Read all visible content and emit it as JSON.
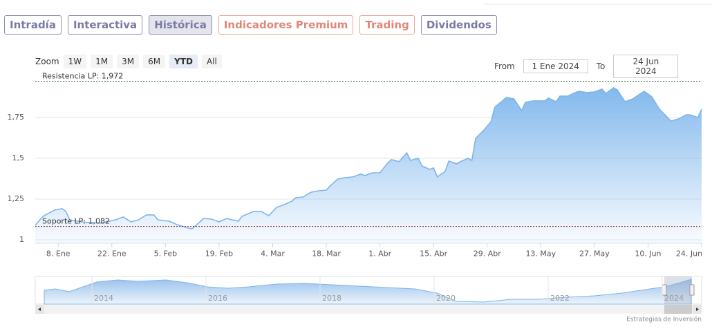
{
  "tabs": [
    "Intradía",
    "Interactiva",
    "Histórica",
    "Indicadores Premium",
    "Trading",
    "Dividendos"
  ],
  "zoom": {
    "label": "Zoom",
    "buttons": [
      "1W",
      "1M",
      "3M",
      "6M",
      "YTD",
      "All"
    ]
  },
  "range": {
    "from_label": "From",
    "from": "1 Ene 2024",
    "to_label": "To",
    "to": "24 Jun 2024"
  },
  "chart_data": {
    "type": "area",
    "color": "#7cb5ec",
    "x": [
      2,
      4,
      7,
      9,
      10,
      11,
      14,
      16,
      19,
      23,
      25,
      27,
      29,
      31,
      33,
      34,
      37,
      39,
      42,
      43,
      46,
      48,
      50,
      52,
      55,
      56,
      59,
      61,
      63,
      65,
      67,
      69,
      70,
      72,
      74,
      76,
      78,
      79,
      81,
      83,
      85,
      87,
      88,
      90,
      92,
      94,
      95,
      97,
      99,
      100,
      102,
      103,
      105,
      106,
      107,
      109,
      110,
      112,
      113,
      115,
      116,
      117,
      119,
      121,
      122,
      124,
      125,
      127,
      129,
      130,
      132,
      135,
      136,
      138,
      139,
      141,
      143,
      144,
      146,
      148,
      150,
      151,
      153,
      154,
      156,
      158,
      161,
      163,
      165,
      168,
      170,
      172,
      173,
      175,
      176
    ],
    "values": [
      1.089,
      1.144,
      1.182,
      1.191,
      1.174,
      1.123,
      1.11,
      1.106,
      1.102,
      1.123,
      1.14,
      1.11,
      1.123,
      1.153,
      1.153,
      1.123,
      1.114,
      1.093,
      1.072,
      1.068,
      1.131,
      1.127,
      1.11,
      1.131,
      1.114,
      1.144,
      1.174,
      1.174,
      1.148,
      1.199,
      1.216,
      1.237,
      1.258,
      1.263,
      1.292,
      1.301,
      1.305,
      1.331,
      1.373,
      1.381,
      1.386,
      1.403,
      1.394,
      1.411,
      1.411,
      1.47,
      1.492,
      1.479,
      1.534,
      1.487,
      1.5,
      1.453,
      1.432,
      1.441,
      1.386,
      1.419,
      1.483,
      1.466,
      1.479,
      1.5,
      1.487,
      1.623,
      1.669,
      1.725,
      1.814,
      1.852,
      1.873,
      1.864,
      1.792,
      1.843,
      1.852,
      1.852,
      1.869,
      1.847,
      1.881,
      1.881,
      1.903,
      1.911,
      1.903,
      1.907,
      1.924,
      1.898,
      1.932,
      1.919,
      1.847,
      1.864,
      1.911,
      1.877,
      1.801,
      1.729,
      1.742,
      1.767,
      1.767,
      1.75,
      1.801
    ],
    "xlim": [
      2,
      176
    ],
    "xticks": [
      {
        "value": 8,
        "label": "8. Ene"
      },
      {
        "value": 22,
        "label": "22. Ene"
      },
      {
        "value": 36,
        "label": "5. Feb"
      },
      {
        "value": 50,
        "label": "19. Feb"
      },
      {
        "value": 64,
        "label": "4. Mar"
      },
      {
        "value": 78,
        "label": "18. Mar"
      },
      {
        "value": 92,
        "label": "1. Abr"
      },
      {
        "value": 106,
        "label": "15. Abr"
      },
      {
        "value": 120,
        "label": "29. Abr"
      },
      {
        "value": 134,
        "label": "13. May"
      },
      {
        "value": 148,
        "label": "27. May"
      },
      {
        "value": 162,
        "label": "10. Jun"
      },
      {
        "value": 176,
        "label": "24. Jun"
      }
    ],
    "ylim": [
      0.98,
      2.0
    ],
    "yticks": [
      1,
      {
        "value": 1.25,
        "label": "1,25"
      },
      {
        "value": 1.5,
        "label": "1,5"
      },
      {
        "value": 1.75,
        "label": "1,75"
      }
    ],
    "grid": true,
    "annotations": [
      {
        "label": "Resistencia LP: 1,972",
        "value": 1.972,
        "color": "#2e6b2e"
      },
      {
        "label": "Soporte LP: 1,082",
        "value": 1.082,
        "color": "#8b1a1a"
      }
    ]
  },
  "navigator": {
    "labels": [
      "2014",
      "2016",
      "2018",
      "2020",
      "2022",
      "2024"
    ]
  },
  "credit": "Estrategias de Inversión"
}
